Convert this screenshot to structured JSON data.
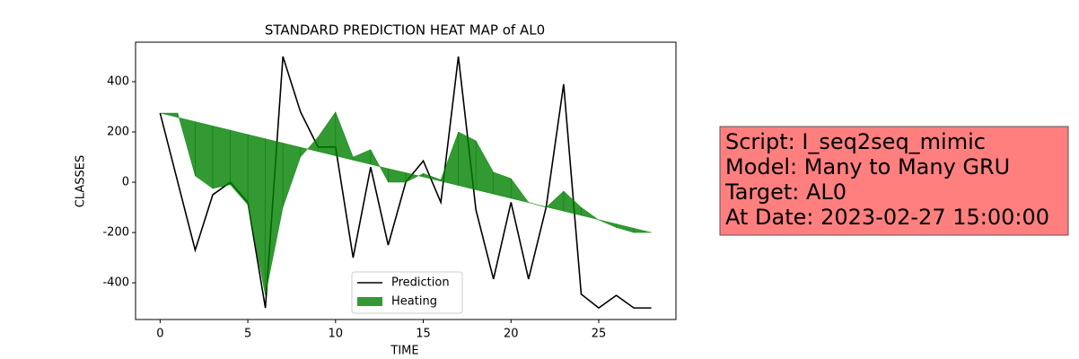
{
  "chart_data": {
    "type": "line",
    "title": "STANDARD PREDICTION HEAT MAP of AL0",
    "x_label": "TIME",
    "y_label": "CLASSES",
    "x": [
      0,
      1,
      2,
      3,
      4,
      5,
      6,
      7,
      8,
      9,
      10,
      11,
      12,
      13,
      14,
      15,
      16,
      17,
      18,
      19,
      20,
      21,
      22,
      23,
      24,
      25,
      26,
      27,
      28
    ],
    "series": [
      {
        "name": "Prediction",
        "color": "#000000",
        "values": [
          275,
          2,
          -270,
          -50,
          0,
          -80,
          -500,
          500,
          280,
          140,
          140,
          -300,
          60,
          -250,
          0,
          85,
          -80,
          500,
          -110,
          -385,
          -80,
          -385,
          -100,
          390,
          -445,
          -500,
          -450,
          -500,
          -500
        ]
      },
      {
        "name": "Heating",
        "color": "#008000",
        "alpha": 0.8,
        "fill": true,
        "values": [
          275,
          275,
          25,
          -25,
          -10,
          -90,
          -450,
          -100,
          100,
          180,
          280,
          100,
          130,
          0,
          0,
          35,
          10,
          200,
          165,
          40,
          15,
          -80,
          -100,
          -35,
          -100,
          -150,
          -180,
          -200,
          -200
        ],
        "baseline": [
          275,
          258,
          241,
          224,
          207,
          190,
          173,
          156,
          139,
          122,
          105,
          88,
          71,
          54,
          38,
          21,
          4,
          -13,
          -30,
          -47,
          -64,
          -81,
          -98,
          -115,
          -132,
          -149,
          -166,
          -183,
          -200
        ]
      }
    ],
    "xlim": [
      -1.4,
      29.4
    ],
    "xticks": [
      0,
      5,
      10,
      15,
      20,
      25
    ],
    "ylim": [
      -546,
      557
    ],
    "yticks": [
      -400,
      -200,
      0,
      200,
      400
    ],
    "legend": "lower center"
  },
  "info_box": {
    "lines": [
      "Script: I_seq2seq_mimic",
      "Model: Many to Many GRU",
      "Target: AL0",
      "At Date: 2023-02-27 15:00:00"
    ],
    "color": "#ff7f7f"
  }
}
